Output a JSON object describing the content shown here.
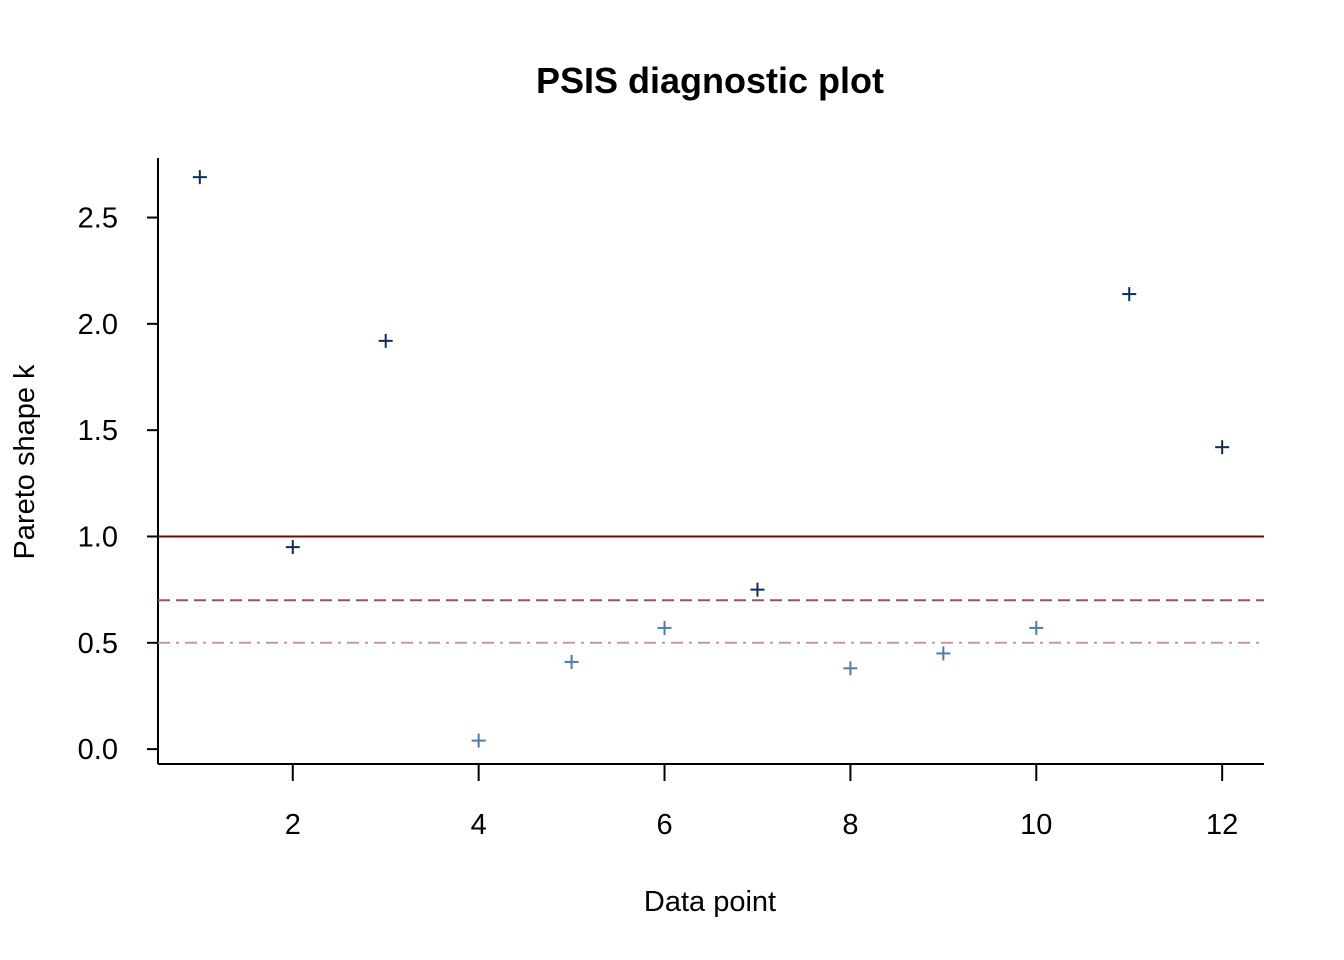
{
  "chart_data": {
    "type": "scatter",
    "title": "PSIS diagnostic plot",
    "xlabel": "Data point",
    "ylabel": "Pareto shape k",
    "xlim": [
      0.55,
      12.45
    ],
    "ylim": [
      -0.07,
      2.78
    ],
    "xticks": [
      2,
      4,
      6,
      8,
      10,
      12
    ],
    "yticks": [
      "0.0",
      "0.5",
      "1.0",
      "1.5",
      "2.0",
      "2.5"
    ],
    "marker": "+",
    "grid": false,
    "x": [
      1,
      2,
      3,
      4,
      5,
      6,
      7,
      8,
      9,
      10,
      11,
      12
    ],
    "y": [
      2.69,
      0.95,
      1.92,
      0.04,
      0.41,
      0.57,
      0.75,
      0.38,
      0.45,
      0.57,
      2.14,
      1.42
    ],
    "point_colors": {
      "low": "#4A7FAA",
      "high": "#0B2E59"
    },
    "reference_lines": [
      {
        "y": 1.0,
        "style": "solid",
        "color": "#6B0B0B"
      },
      {
        "y": 0.7,
        "style": "dashed",
        "color": "#A0505A"
      },
      {
        "y": 0.5,
        "style": "dashdot",
        "color": "#C8989E"
      }
    ]
  }
}
